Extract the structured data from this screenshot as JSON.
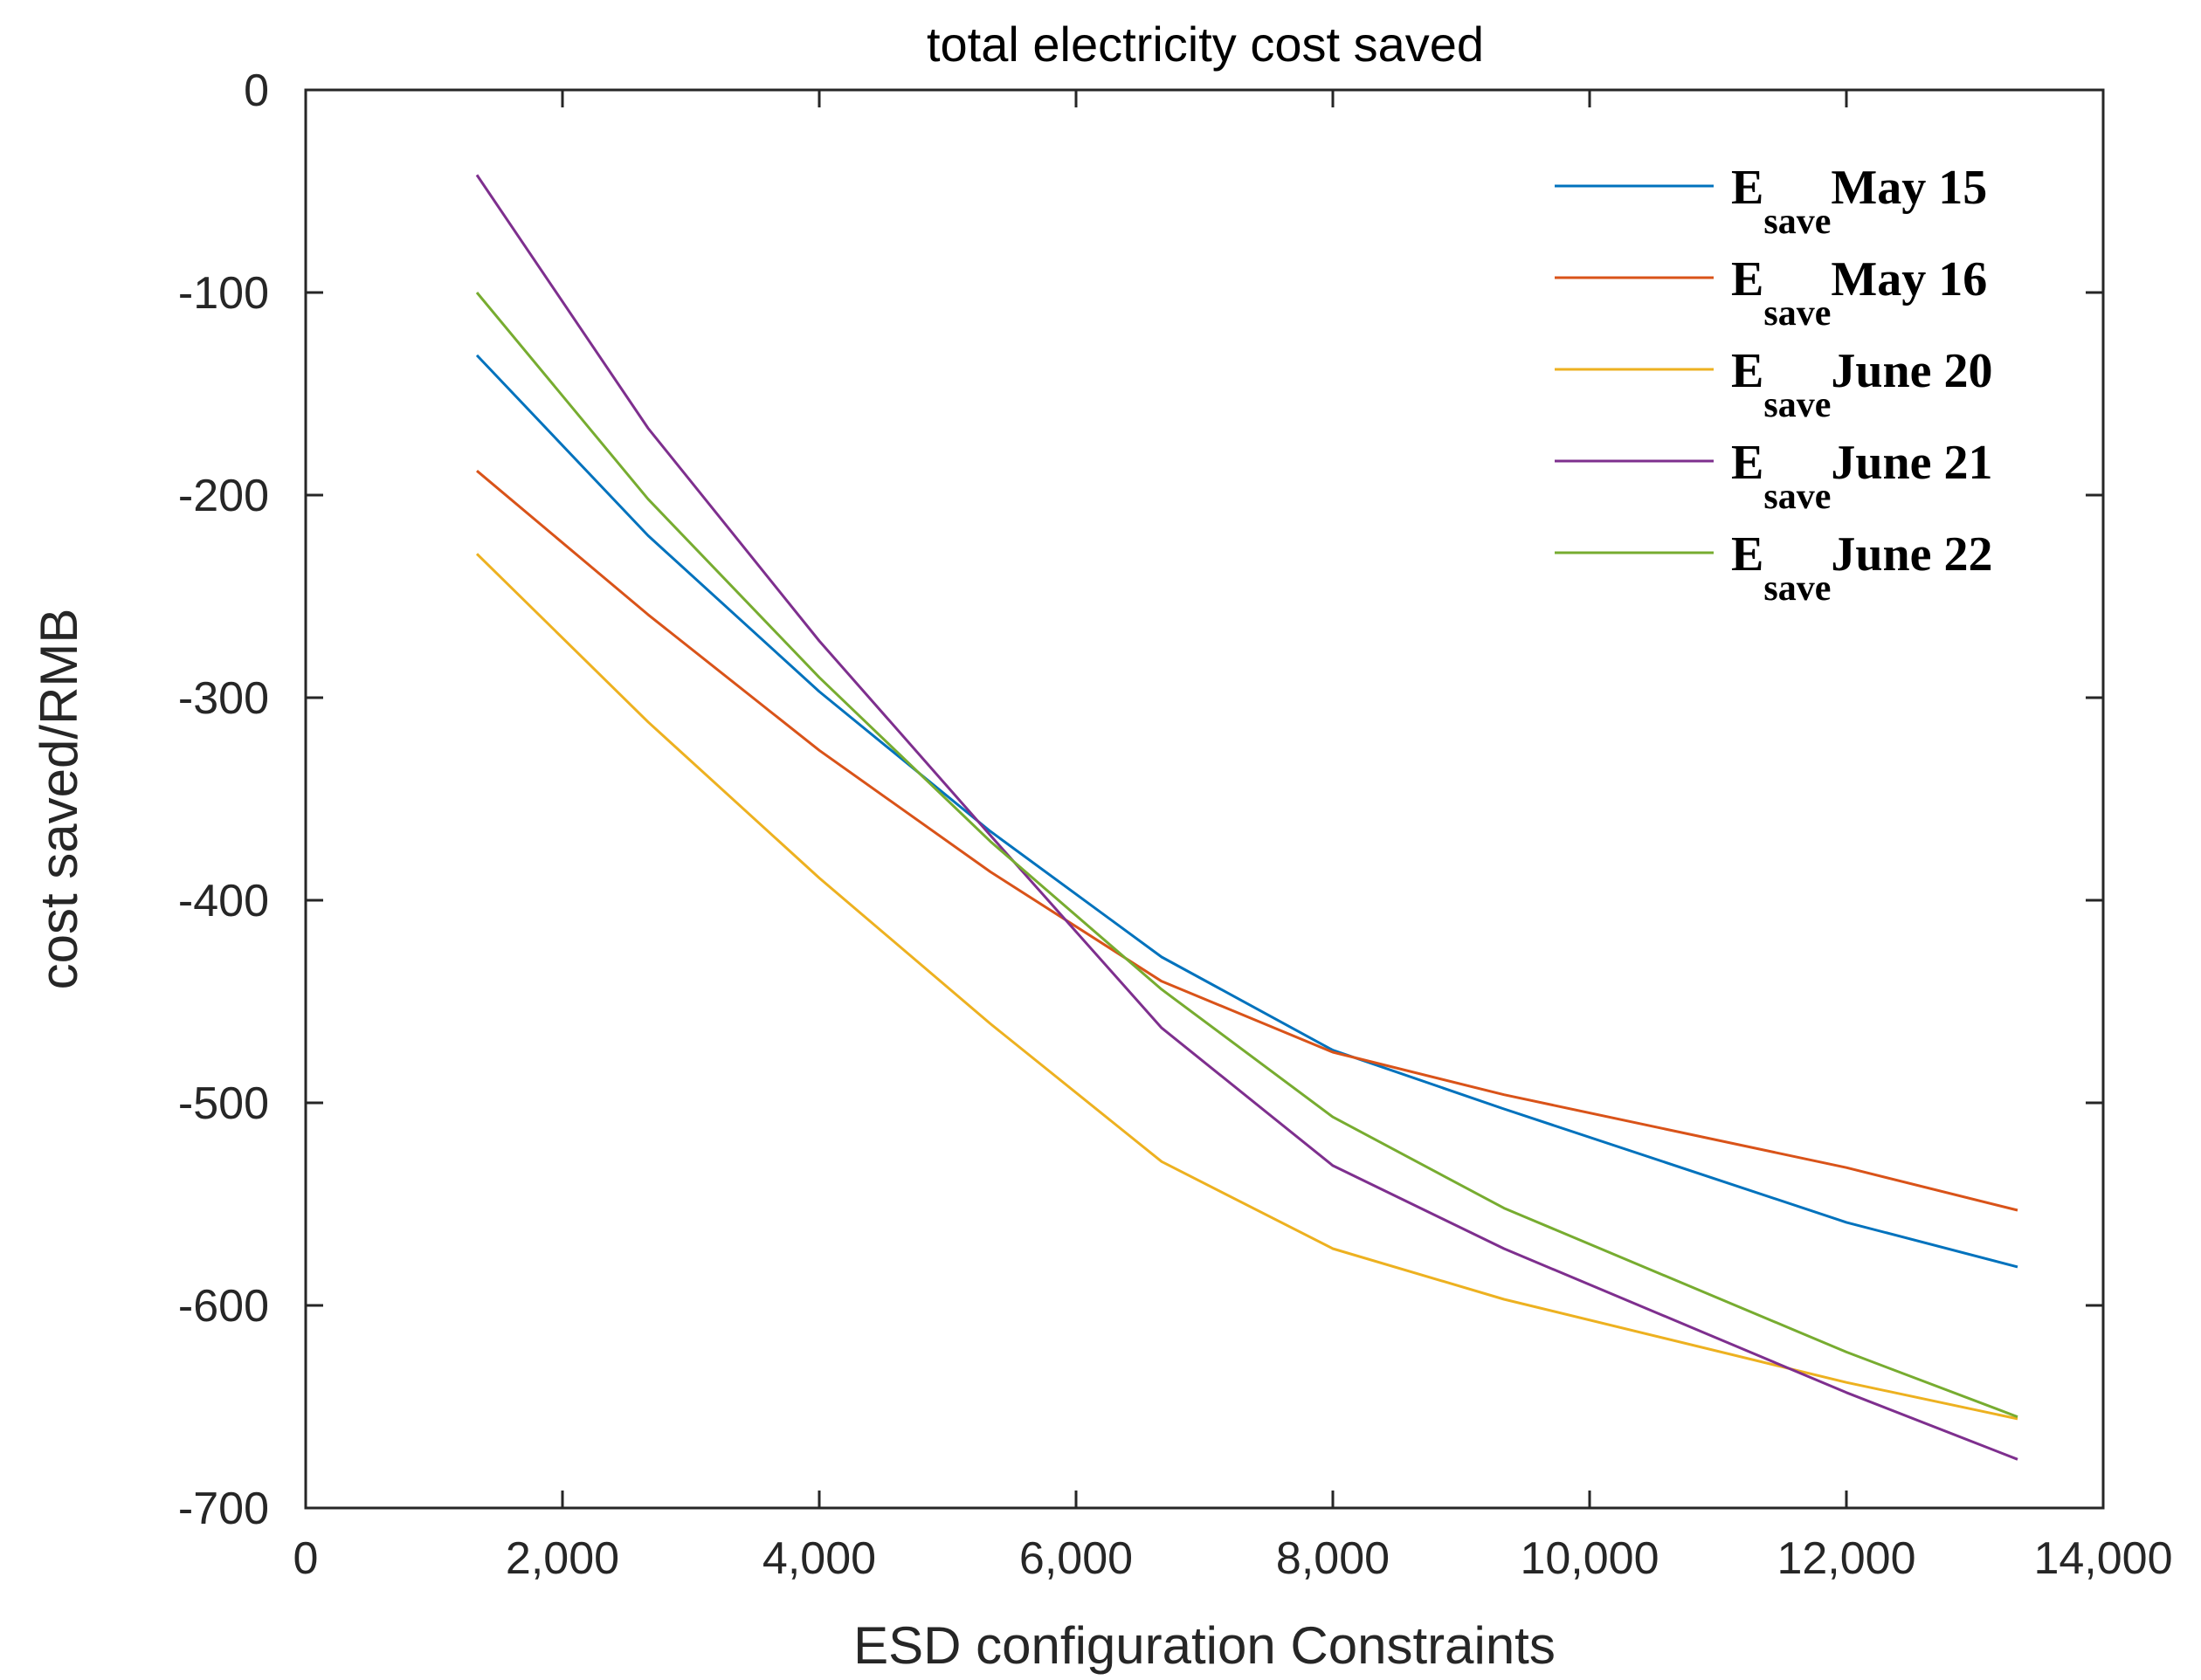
{
  "chart_data": {
    "type": "line",
    "title": "total electricity cost saved",
    "xlabel": "ESD configuration Constraints",
    "ylabel": "cost saved/RMB",
    "xlim": [
      0,
      14000
    ],
    "ylim": [
      -700,
      0
    ],
    "xticks": [
      0,
      2000,
      4000,
      6000,
      8000,
      10000,
      12000,
      14000
    ],
    "xtick_labels": [
      "0",
      "2,000",
      "4,000",
      "6,000",
      "8,000",
      "10,000",
      "12,000",
      "14,000"
    ],
    "yticks": [
      0,
      -100,
      -200,
      -300,
      -400,
      -500,
      -600,
      -700
    ],
    "ytick_labels": [
      "0",
      "-100",
      "-200",
      "-300",
      "-400",
      "-500",
      "-600",
      "-700"
    ],
    "grid": false,
    "legend_position": "top-right",
    "x": [
      1333,
      2667,
      4000,
      5333,
      6667,
      8000,
      9333,
      12000,
      13333
    ],
    "series": [
      {
        "name": "May 15",
        "legend_base": "E",
        "legend_sub": "save",
        "legend_suffix": "May 15",
        "color": "#0072BD",
        "values": [
          -131,
          -220,
          -297,
          -366,
          -428,
          -474,
          -503,
          -559,
          -581
        ]
      },
      {
        "name": "May 16",
        "legend_base": "E",
        "legend_sub": "save",
        "legend_suffix": "May 16",
        "color": "#D95319",
        "values": [
          -188,
          -259,
          -326,
          -386,
          -440,
          -475,
          -496,
          -532,
          -553
        ]
      },
      {
        "name": "June 20",
        "legend_base": "E",
        "legend_sub": "save",
        "legend_suffix": "June 20",
        "color": "#EDB120",
        "values": [
          -229,
          -312,
          -389,
          -461,
          -529,
          -572,
          -597,
          -638,
          -656
        ]
      },
      {
        "name": "June 21",
        "legend_base": "E",
        "legend_sub": "save",
        "legend_suffix": "June 21",
        "color": "#7E2F8E",
        "values": [
          -42,
          -167,
          -272,
          -368,
          -463,
          -531,
          -572,
          -643,
          -676
        ]
      },
      {
        "name": "June 22",
        "legend_base": "E",
        "legend_sub": "save",
        "legend_suffix": "June 22",
        "color": "#77AC30",
        "values": [
          -100,
          -202,
          -290,
          -371,
          -444,
          -507,
          -552,
          -623,
          -655
        ]
      }
    ]
  }
}
